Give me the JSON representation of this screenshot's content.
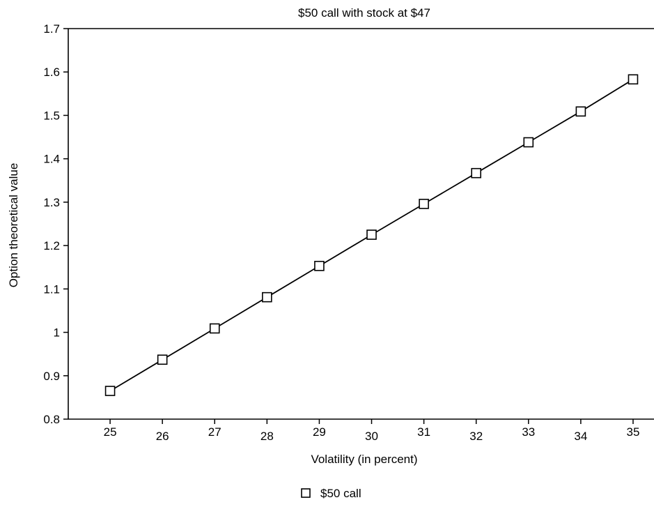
{
  "chart_data": {
    "type": "line",
    "title": "$50 call with stock at $47",
    "xlabel": "Volatility (in percent)",
    "ylabel": "Option theoretical value",
    "x": [
      25,
      26,
      27,
      28,
      29,
      30,
      31,
      32,
      33,
      34,
      35
    ],
    "xlim": [
      24.2,
      35.4
    ],
    "ylim": [
      0.8,
      1.7
    ],
    "xticks": [
      "25",
      "26",
      "27",
      "28",
      "29",
      "30",
      "31",
      "32",
      "33",
      "34",
      "35"
    ],
    "yticks": [
      "0.8",
      "0.9",
      "1",
      "1.1",
      "1.2",
      "1.3",
      "1.4",
      "1.5",
      "1.6",
      "1.7"
    ],
    "grid": false,
    "legend_position": "bottom-center",
    "series": [
      {
        "name": "$50 call",
        "marker": "open-square",
        "color": "#000000",
        "values": [
          0.865,
          0.937,
          1.009,
          1.081,
          1.153,
          1.225,
          1.296,
          1.367,
          1.438,
          1.509,
          1.583
        ]
      }
    ]
  }
}
